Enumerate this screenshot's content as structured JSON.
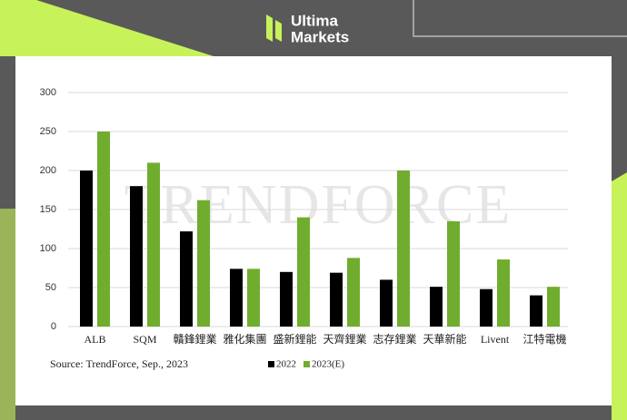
{
  "header": {
    "brand_line1": "Ultima",
    "brand_line2": "Markets"
  },
  "chart_data": {
    "type": "bar",
    "categories": [
      "ALB",
      "SQM",
      "贛鋒鋰業",
      "雅化集團",
      "盛新鋰能",
      "天齊鋰業",
      "志存鋰業",
      "天華新能",
      "Livent",
      "江特電機"
    ],
    "series": [
      {
        "name": "2022",
        "color": "#000000",
        "values": [
          200,
          180,
          122,
          74,
          70,
          69,
          60,
          51,
          48,
          40
        ]
      },
      {
        "name": "2023(E)",
        "color": "#70ad2f",
        "values": [
          250,
          210,
          162,
          74,
          140,
          88,
          200,
          135,
          86,
          51
        ]
      }
    ],
    "ylim": [
      0,
      300
    ],
    "yticks": [
      0,
      50,
      100,
      150,
      200,
      250,
      300
    ],
    "grid": true,
    "source": "Source: TrendForce, Sep., 2023",
    "watermark": "TRENDFORCE"
  }
}
